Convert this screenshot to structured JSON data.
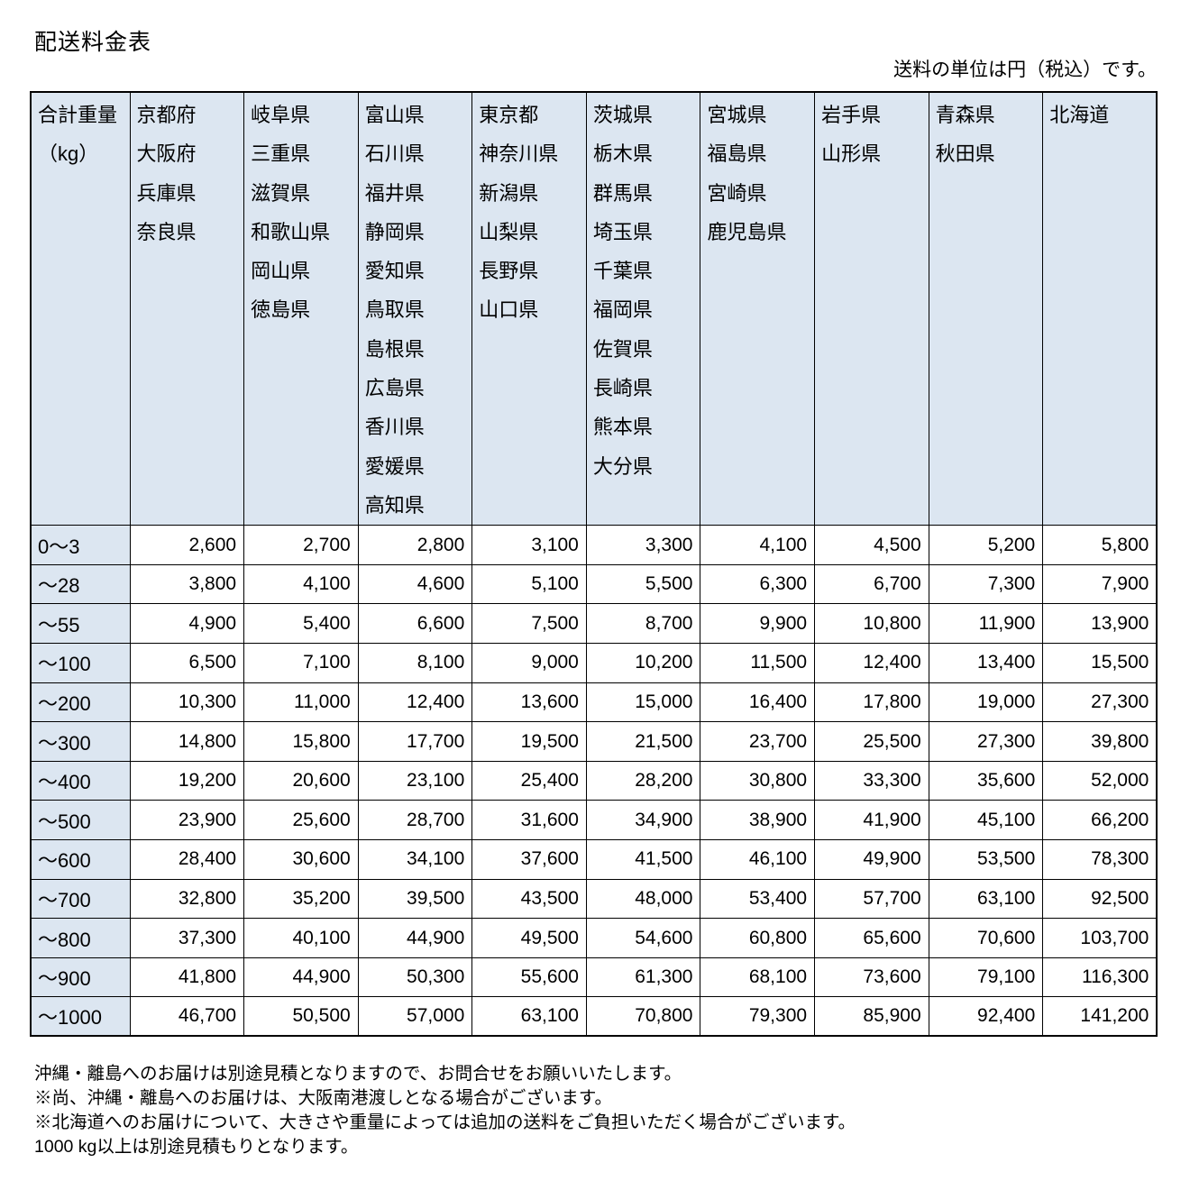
{
  "title": "配送料金表",
  "unit_note": "送料の単位は円（税込）です。",
  "colors": {
    "header_bg": "#dce6f1",
    "border": "#000000",
    "text": "#000000"
  },
  "table": {
    "weight_header_lines": [
      "合計重量",
      "（kg）"
    ],
    "region_columns": [
      [
        "京都府",
        "大阪府",
        "兵庫県",
        "奈良県"
      ],
      [
        "岐阜県",
        "三重県",
        "滋賀県",
        "和歌山県",
        "岡山県",
        "徳島県"
      ],
      [
        "富山県",
        "石川県",
        "福井県",
        "静岡県",
        "愛知県",
        "鳥取県",
        "島根県",
        "広島県",
        "香川県",
        "愛媛県",
        "高知県"
      ],
      [
        "東京都",
        "神奈川県",
        "新潟県",
        "山梨県",
        "長野県",
        "山口県"
      ],
      [
        "茨城県",
        "栃木県",
        "群馬県",
        "埼玉県",
        "千葉県",
        "福岡県",
        "佐賀県",
        "長崎県",
        "熊本県",
        "大分県"
      ],
      [
        "宮城県",
        "福島県",
        "宮崎県",
        "鹿児島県"
      ],
      [
        "岩手県",
        "山形県"
      ],
      [
        "青森県",
        "秋田県"
      ],
      [
        "北海道"
      ]
    ],
    "rows": [
      {
        "weight": "0～3",
        "values": [
          "2,600",
          "2,700",
          "2,800",
          "3,100",
          "3,300",
          "4,100",
          "4,500",
          "5,200",
          "5,800"
        ]
      },
      {
        "weight": "～28",
        "values": [
          "3,800",
          "4,100",
          "4,600",
          "5,100",
          "5,500",
          "6,300",
          "6,700",
          "7,300",
          "7,900"
        ]
      },
      {
        "weight": "～55",
        "values": [
          "4,900",
          "5,400",
          "6,600",
          "7,500",
          "8,700",
          "9,900",
          "10,800",
          "11,900",
          "13,900"
        ]
      },
      {
        "weight": "～100",
        "values": [
          "6,500",
          "7,100",
          "8,100",
          "9,000",
          "10,200",
          "11,500",
          "12,400",
          "13,400",
          "15,500"
        ]
      },
      {
        "weight": "～200",
        "values": [
          "10,300",
          "11,000",
          "12,400",
          "13,600",
          "15,000",
          "16,400",
          "17,800",
          "19,000",
          "27,300"
        ]
      },
      {
        "weight": "～300",
        "values": [
          "14,800",
          "15,800",
          "17,700",
          "19,500",
          "21,500",
          "23,700",
          "25,500",
          "27,300",
          "39,800"
        ]
      },
      {
        "weight": "～400",
        "values": [
          "19,200",
          "20,600",
          "23,100",
          "25,400",
          "28,200",
          "30,800",
          "33,300",
          "35,600",
          "52,000"
        ]
      },
      {
        "weight": "～500",
        "values": [
          "23,900",
          "25,600",
          "28,700",
          "31,600",
          "34,900",
          "38,900",
          "41,900",
          "45,100",
          "66,200"
        ]
      },
      {
        "weight": "～600",
        "values": [
          "28,400",
          "30,600",
          "34,100",
          "37,600",
          "41,500",
          "46,100",
          "49,900",
          "53,500",
          "78,300"
        ]
      },
      {
        "weight": "～700",
        "values": [
          "32,800",
          "35,200",
          "39,500",
          "43,500",
          "48,000",
          "53,400",
          "57,700",
          "63,100",
          "92,500"
        ]
      },
      {
        "weight": "～800",
        "values": [
          "37,300",
          "40,100",
          "44,900",
          "49,500",
          "54,600",
          "60,800",
          "65,600",
          "70,600",
          "103,700"
        ]
      },
      {
        "weight": "～900",
        "values": [
          "41,800",
          "44,900",
          "50,300",
          "55,600",
          "61,300",
          "68,100",
          "73,600",
          "79,100",
          "116,300"
        ]
      },
      {
        "weight": "～1000",
        "values": [
          "46,700",
          "50,500",
          "57,000",
          "63,100",
          "70,800",
          "79,300",
          "85,900",
          "92,400",
          "141,200"
        ]
      }
    ]
  },
  "notes": [
    "沖縄・離島へのお届けは別途見積となりますので、お問合せをお願いいたします。",
    "※尚、沖縄・離島へのお届けは、大阪南港渡しとなる場合がございます。",
    "※北海道へのお届けについて、大きさや重量によっては追加の送料をご負担いただく場合がございます。",
    "1000 kg以上は別途見積もりとなります。"
  ]
}
